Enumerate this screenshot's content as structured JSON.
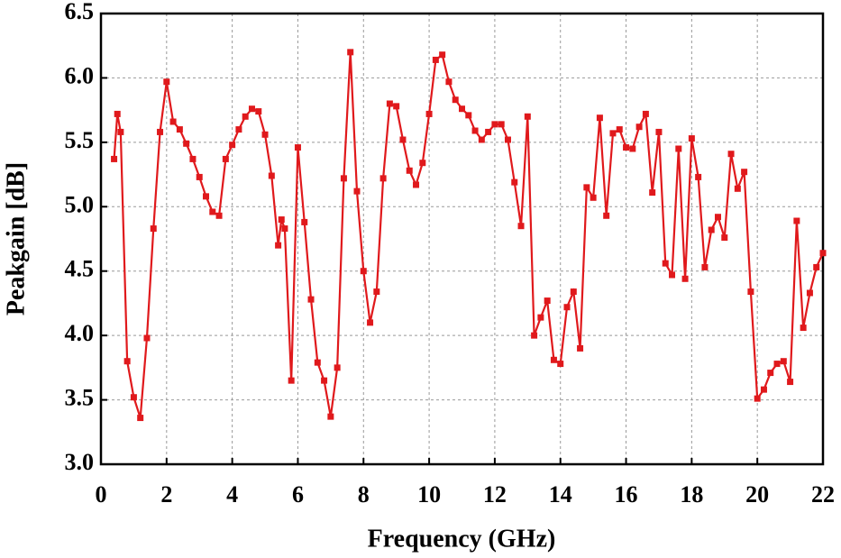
{
  "chart_data": {
    "type": "line",
    "xlabel": "Frequency (GHz)",
    "ylabel": "Peakgain [dB]",
    "x": [
      0.4,
      0.5,
      0.6,
      0.8,
      1.0,
      1.2,
      1.4,
      1.6,
      1.8,
      2.0,
      2.2,
      2.4,
      2.6,
      2.8,
      3.0,
      3.2,
      3.4,
      3.6,
      3.8,
      4.0,
      4.2,
      4.4,
      4.6,
      4.8,
      5.0,
      5.2,
      5.4,
      5.5,
      5.6,
      5.8,
      6.0,
      6.2,
      6.4,
      6.6,
      6.8,
      7.0,
      7.2,
      7.4,
      7.6,
      7.8,
      8.0,
      8.2,
      8.4,
      8.6,
      8.8,
      9.0,
      9.2,
      9.4,
      9.6,
      9.8,
      10.0,
      10.2,
      10.4,
      10.6,
      10.8,
      11.0,
      11.2,
      11.4,
      11.6,
      11.8,
      12.0,
      12.2,
      12.4,
      12.6,
      12.8,
      13.0,
      13.2,
      13.4,
      13.6,
      13.8,
      14.0,
      14.2,
      14.4,
      14.6,
      14.8,
      15.0,
      15.2,
      15.4,
      15.6,
      15.8,
      16.0,
      16.2,
      16.4,
      16.6,
      16.8,
      17.0,
      17.2,
      17.4,
      17.6,
      17.8,
      18.0,
      18.2,
      18.4,
      18.6,
      18.8,
      19.0,
      19.2,
      19.4,
      19.6,
      19.8,
      20.0,
      20.2,
      20.4,
      20.6,
      20.8,
      21.0,
      21.2,
      21.4,
      21.6,
      21.8,
      22.0
    ],
    "series": [
      {
        "color": "#e0191c",
        "values": [
          5.37,
          5.72,
          5.58,
          3.8,
          3.52,
          3.36,
          3.98,
          4.83,
          5.58,
          5.97,
          5.66,
          5.6,
          5.49,
          5.37,
          5.23,
          5.08,
          4.96,
          4.93,
          5.37,
          5.48,
          5.6,
          5.7,
          5.76,
          5.74,
          5.56,
          5.24,
          4.7,
          4.9,
          4.83,
          3.65,
          5.46,
          4.88,
          4.28,
          3.79,
          3.65,
          3.37,
          3.75,
          5.22,
          6.2,
          5.12,
          4.5,
          4.1,
          4.34,
          5.22,
          5.8,
          5.78,
          5.52,
          5.28,
          5.17,
          5.34,
          5.72,
          6.14,
          6.18,
          5.97,
          5.83,
          5.76,
          5.71,
          5.59,
          5.52,
          5.58,
          5.64,
          5.64,
          5.52,
          5.19,
          4.85,
          5.7,
          4.0,
          4.14,
          4.27,
          3.81,
          3.78,
          4.22,
          4.34,
          3.9,
          5.15,
          5.07,
          5.69,
          4.93,
          5.57,
          5.6,
          5.46,
          5.45,
          5.62,
          5.72,
          5.11,
          5.58,
          4.56,
          4.47,
          5.45,
          4.44,
          5.53,
          5.23,
          4.53,
          4.82,
          4.92,
          4.76,
          5.41,
          5.14,
          5.27,
          4.34,
          3.51,
          3.58,
          3.71,
          3.78,
          3.8,
          3.64,
          4.89,
          4.06,
          4.33,
          4.53,
          4.64
        ]
      }
    ],
    "xlim": [
      0,
      22
    ],
    "xticks": [
      0,
      2,
      4,
      6,
      8,
      10,
      12,
      14,
      16,
      18,
      20,
      22
    ],
    "ylim": [
      3,
      6.5
    ],
    "yticks": [
      {
        "value": 3,
        "label": "3.0"
      },
      3.5,
      {
        "value": 4,
        "label": "4.0"
      },
      4.5,
      {
        "value": 5,
        "label": "5.0"
      },
      5.5,
      {
        "value": 6,
        "label": "6.0"
      },
      6.5
    ],
    "grid": true
  }
}
